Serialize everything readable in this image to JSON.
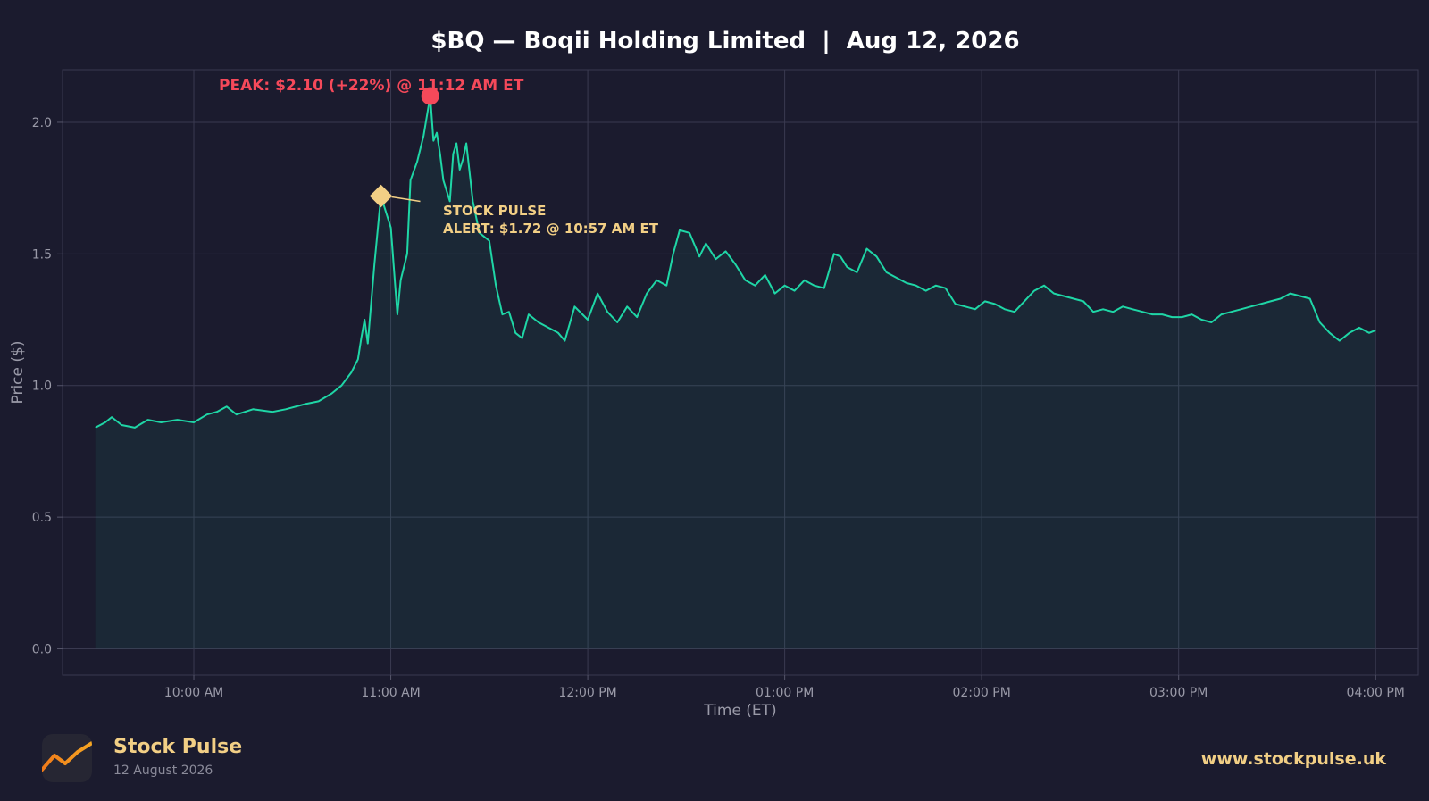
{
  "chart_data": {
    "type": "area",
    "title": "$BQ — Boqii Holding Limited  |  Aug 12, 2026",
    "xlabel": "Time (ET)",
    "ylabel": "Price ($)",
    "ylim": [
      -0.1,
      2.2
    ],
    "yticks": [
      0.0,
      0.5,
      1.0,
      1.5,
      2.0
    ],
    "ytick_labels": [
      "0.0",
      "0.5",
      "1.0",
      "1.5",
      "2.0"
    ],
    "xticks": [
      "10:00",
      "11:00",
      "12:00",
      "13:00",
      "14:00",
      "15:00",
      "16:00"
    ],
    "xtick_labels": [
      "10:00 AM",
      "11:00 AM",
      "12:00 PM",
      "01:00 PM",
      "02:00 PM",
      "03:00 PM",
      "04:00 PM"
    ],
    "xlim": [
      "09:20",
      "16:13"
    ],
    "grid": true,
    "series": [
      {
        "color": "#1fd6a6",
        "points": [
          [
            "09:30",
            0.84
          ],
          [
            "09:33",
            0.86
          ],
          [
            "09:35",
            0.88
          ],
          [
            "09:38",
            0.85
          ],
          [
            "09:42",
            0.84
          ],
          [
            "09:46",
            0.87
          ],
          [
            "09:50",
            0.86
          ],
          [
            "09:55",
            0.87
          ],
          [
            "10:00",
            0.86
          ],
          [
            "10:04",
            0.89
          ],
          [
            "10:07",
            0.9
          ],
          [
            "10:10",
            0.92
          ],
          [
            "10:13",
            0.89
          ],
          [
            "10:18",
            0.91
          ],
          [
            "10:24",
            0.9
          ],
          [
            "10:28",
            0.91
          ],
          [
            "10:34",
            0.93
          ],
          [
            "10:38",
            0.94
          ],
          [
            "10:42",
            0.97
          ],
          [
            "10:45",
            1.0
          ],
          [
            "10:48",
            1.05
          ],
          [
            "10:50",
            1.1
          ],
          [
            "10:51",
            1.18
          ],
          [
            "10:52",
            1.25
          ],
          [
            "10:53",
            1.16
          ],
          [
            "10:55",
            1.46
          ],
          [
            "10:57",
            1.72
          ],
          [
            "11:00",
            1.6
          ],
          [
            "11:02",
            1.27
          ],
          [
            "11:03",
            1.4
          ],
          [
            "11:05",
            1.5
          ],
          [
            "11:06",
            1.78
          ],
          [
            "11:08",
            1.85
          ],
          [
            "11:10",
            1.95
          ],
          [
            "11:12",
            2.1
          ],
          [
            "11:13",
            1.93
          ],
          [
            "11:14",
            1.96
          ],
          [
            "11:15",
            1.88
          ],
          [
            "11:16",
            1.78
          ],
          [
            "11:18",
            1.7
          ],
          [
            "11:19",
            1.88
          ],
          [
            "11:20",
            1.92
          ],
          [
            "11:21",
            1.82
          ],
          [
            "11:22",
            1.86
          ],
          [
            "11:23",
            1.92
          ],
          [
            "11:25",
            1.7
          ],
          [
            "11:27",
            1.58
          ],
          [
            "11:30",
            1.55
          ],
          [
            "11:32",
            1.38
          ],
          [
            "11:34",
            1.27
          ],
          [
            "11:36",
            1.28
          ],
          [
            "11:38",
            1.2
          ],
          [
            "11:40",
            1.18
          ],
          [
            "11:42",
            1.27
          ],
          [
            "11:45",
            1.24
          ],
          [
            "11:48",
            1.22
          ],
          [
            "11:51",
            1.2
          ],
          [
            "11:53",
            1.17
          ],
          [
            "11:56",
            1.3
          ],
          [
            "12:00",
            1.25
          ],
          [
            "12:03",
            1.35
          ],
          [
            "12:06",
            1.28
          ],
          [
            "12:09",
            1.24
          ],
          [
            "12:12",
            1.3
          ],
          [
            "12:15",
            1.26
          ],
          [
            "12:18",
            1.35
          ],
          [
            "12:21",
            1.4
          ],
          [
            "12:24",
            1.38
          ],
          [
            "12:26",
            1.5
          ],
          [
            "12:28",
            1.59
          ],
          [
            "12:31",
            1.58
          ],
          [
            "12:34",
            1.49
          ],
          [
            "12:36",
            1.54
          ],
          [
            "12:39",
            1.48
          ],
          [
            "12:42",
            1.51
          ],
          [
            "12:45",
            1.46
          ],
          [
            "12:48",
            1.4
          ],
          [
            "12:51",
            1.38
          ],
          [
            "12:54",
            1.42
          ],
          [
            "12:57",
            1.35
          ],
          [
            "13:00",
            1.38
          ],
          [
            "13:03",
            1.36
          ],
          [
            "13:06",
            1.4
          ],
          [
            "13:09",
            1.38
          ],
          [
            "13:12",
            1.37
          ],
          [
            "13:15",
            1.5
          ],
          [
            "13:17",
            1.49
          ],
          [
            "13:19",
            1.45
          ],
          [
            "13:22",
            1.43
          ],
          [
            "13:25",
            1.52
          ],
          [
            "13:28",
            1.49
          ],
          [
            "13:31",
            1.43
          ],
          [
            "13:34",
            1.41
          ],
          [
            "13:37",
            1.39
          ],
          [
            "13:40",
            1.38
          ],
          [
            "13:43",
            1.36
          ],
          [
            "13:46",
            1.38
          ],
          [
            "13:49",
            1.37
          ],
          [
            "13:52",
            1.31
          ],
          [
            "13:55",
            1.3
          ],
          [
            "13:58",
            1.29
          ],
          [
            "14:01",
            1.32
          ],
          [
            "14:04",
            1.31
          ],
          [
            "14:07",
            1.29
          ],
          [
            "14:10",
            1.28
          ],
          [
            "14:13",
            1.32
          ],
          [
            "14:16",
            1.36
          ],
          [
            "14:19",
            1.38
          ],
          [
            "14:22",
            1.35
          ],
          [
            "14:25",
            1.34
          ],
          [
            "14:28",
            1.33
          ],
          [
            "14:31",
            1.32
          ],
          [
            "14:34",
            1.28
          ],
          [
            "14:37",
            1.29
          ],
          [
            "14:40",
            1.28
          ],
          [
            "14:43",
            1.3
          ],
          [
            "14:46",
            1.29
          ],
          [
            "14:49",
            1.28
          ],
          [
            "14:52",
            1.27
          ],
          [
            "14:55",
            1.27
          ],
          [
            "14:58",
            1.26
          ],
          [
            "15:01",
            1.26
          ],
          [
            "15:04",
            1.27
          ],
          [
            "15:07",
            1.25
          ],
          [
            "15:10",
            1.24
          ],
          [
            "15:13",
            1.27
          ],
          [
            "15:16",
            1.28
          ],
          [
            "15:19",
            1.29
          ],
          [
            "15:22",
            1.3
          ],
          [
            "15:25",
            1.31
          ],
          [
            "15:28",
            1.32
          ],
          [
            "15:31",
            1.33
          ],
          [
            "15:34",
            1.35
          ],
          [
            "15:37",
            1.34
          ],
          [
            "15:40",
            1.33
          ],
          [
            "15:43",
            1.24
          ],
          [
            "15:46",
            1.2
          ],
          [
            "15:49",
            1.17
          ],
          [
            "15:52",
            1.2
          ],
          [
            "15:55",
            1.22
          ],
          [
            "15:58",
            1.2
          ],
          [
            "16:00",
            1.21
          ]
        ]
      }
    ],
    "alert_line": {
      "value": 1.72,
      "color": "#c78a6a"
    },
    "annotations": [
      {
        "type": "peak",
        "x": "11:12",
        "y": 2.1,
        "color": "#f5495a",
        "label": "PEAK: $2.10 (+22%) @ 11:12 AM ET"
      },
      {
        "type": "alert",
        "x": "10:57",
        "y": 1.72,
        "color": "#f2cf85",
        "label_line1": "STOCK PULSE",
        "label_line2": "ALERT: $1.72 @ 10:57 AM ET"
      }
    ]
  },
  "footer": {
    "brand_name": "Stock Pulse",
    "brand_date": "12 August 2026",
    "url": "www.stockpulse.uk",
    "logo_icon": "trend-line-icon",
    "accent_color": "#f2cf85"
  }
}
